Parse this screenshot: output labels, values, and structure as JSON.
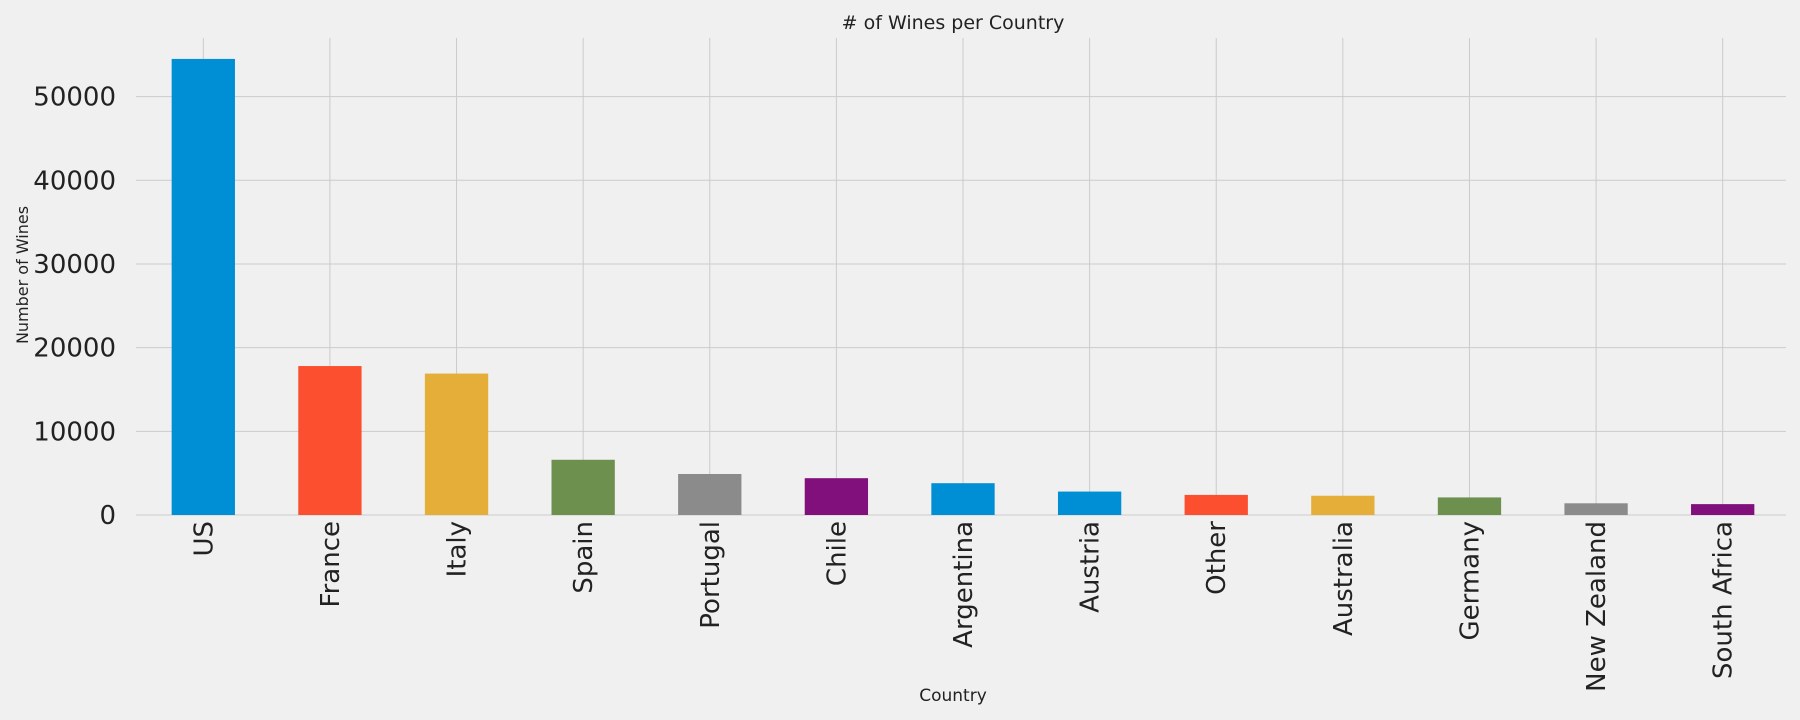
{
  "chart_data": {
    "type": "bar",
    "title": "# of Wines per Country",
    "xlabel": "Country",
    "ylabel": "Number of Wines",
    "categories": [
      "US",
      "France",
      "Italy",
      "Spain",
      "Portugal",
      "Chile",
      "Argentina",
      "Austria",
      "Other",
      "Australia",
      "Germany",
      "New Zealand",
      "South Africa"
    ],
    "values": [
      54500,
      17800,
      16900,
      6600,
      4900,
      4400,
      3800,
      2800,
      2400,
      2300,
      2100,
      1400,
      1300
    ],
    "colors": [
      "#008fd5",
      "#fc4f30",
      "#e5ae38",
      "#6d904f",
      "#8b8b8b",
      "#810f7c",
      "#008fd5",
      "#008fd5",
      "#fc4f30",
      "#e5ae38",
      "#6d904f",
      "#8b8b8b",
      "#810f7c"
    ],
    "yticks": [
      0,
      10000,
      20000,
      30000,
      40000,
      50000
    ],
    "ylim": [
      0,
      57000
    ],
    "grid": true,
    "legend": "none"
  }
}
